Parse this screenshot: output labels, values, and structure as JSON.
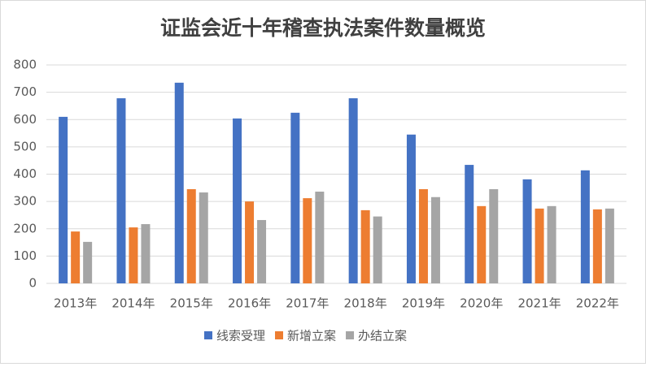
{
  "chart_data": {
    "type": "bar",
    "title": "证监会近十年稽查执法案件数量概览",
    "categories": [
      "2013年",
      "2014年",
      "2015年",
      "2016年",
      "2017年",
      "2018年",
      "2019年",
      "2020年",
      "2021年",
      "2022年"
    ],
    "series": [
      {
        "name": "线索受理",
        "color": "#4472c4",
        "values": [
          610,
          678,
          735,
          604,
          625,
          678,
          545,
          434,
          381,
          414
        ]
      },
      {
        "name": "新增立案",
        "color": "#ed7d31",
        "values": [
          190,
          205,
          345,
          300,
          312,
          268,
          345,
          283,
          274,
          271
        ]
      },
      {
        "name": "办结立案",
        "color": "#a5a5a5",
        "values": [
          152,
          217,
          333,
          232,
          336,
          245,
          316,
          345,
          283,
          274
        ]
      }
    ],
    "ylim": [
      0,
      800
    ],
    "yticks": [
      0,
      100,
      200,
      300,
      400,
      500,
      600,
      700,
      800
    ],
    "grid": true,
    "legend": "bottom"
  }
}
